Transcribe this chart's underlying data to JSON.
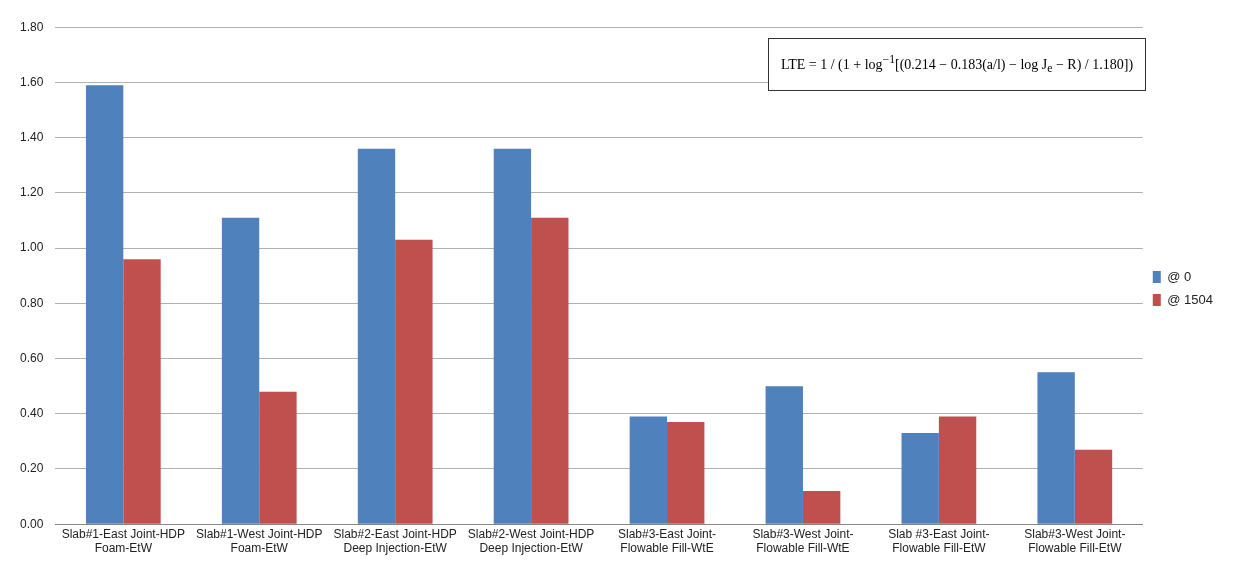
{
  "chart_data": {
    "type": "bar",
    "categories": [
      "Slab#1-East Joint-HDP Foam-EtW",
      "Slab#1-West Joint-HDP Foam-EtW",
      "Slab#2-East Joint-HDP Deep Injection-EtW",
      "Slab#2-West Joint-HDP Deep Injection-EtW",
      "Slab#3-East Joint-Flowable Fill-WtE",
      "Slab#3-West Joint-Flowable Fill-WtE",
      "Slab #3-East Joint-Flowable Fill-EtW",
      "Slab#3-West Joint-Flowable Fill-EtW"
    ],
    "series": [
      {
        "name": "@ 0",
        "color": "#4f81bd",
        "values": [
          1.59,
          1.11,
          1.36,
          1.36,
          0.39,
          0.5,
          0.33,
          0.55
        ]
      },
      {
        "name": "@ 1504",
        "color": "#c0504d",
        "values": [
          0.96,
          0.48,
          1.03,
          1.11,
          0.37,
          0.12,
          0.39,
          0.27
        ]
      }
    ],
    "ylim": [
      0,
      1.8
    ],
    "yticks": [
      {
        "value": 0,
        "label": "0.00"
      },
      {
        "value": 0.2,
        "label": "0.20"
      },
      {
        "value": 0.4,
        "label": "0.40"
      },
      {
        "value": 0.6,
        "label": "0.60"
      },
      {
        "value": 0.8,
        "label": "0.80"
      },
      {
        "value": 1,
        "label": "1.00"
      },
      {
        "value": 1.2,
        "label": "1.20"
      },
      {
        "value": 1.4,
        "label": "1.40"
      },
      {
        "value": 1.6,
        "label": "1.60"
      },
      {
        "value": 1.8,
        "label": "1.80"
      }
    ],
    "grid": "y",
    "legend": "right",
    "annotations": [
      "LTE = 1 / (1 + log$^{−1}$[(0.214 − 0.183(a/l) − log J$_{e}$ − R) / 1.180])"
    ]
  }
}
